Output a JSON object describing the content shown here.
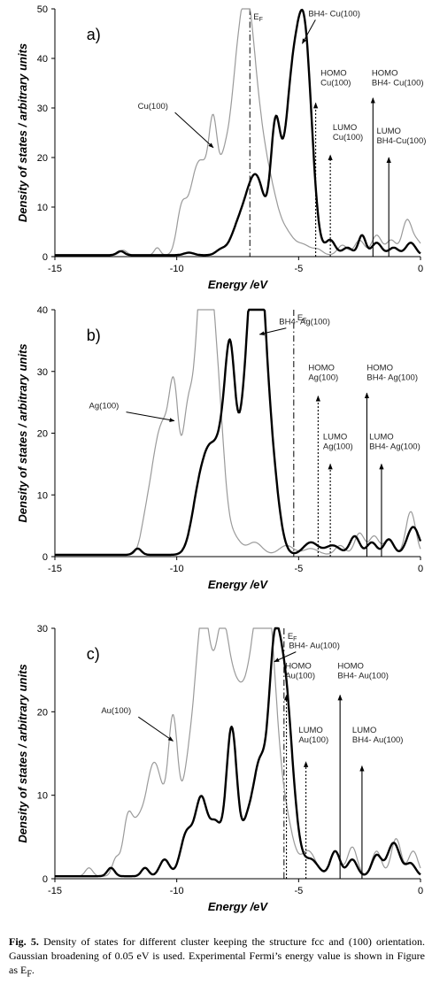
{
  "caption": {
    "label": "Fig. 5.",
    "text": "Density of states for different cluster keeping the structure fcc and (100) orientation. Gaussian broadening of 0.05 eV is used. Experimental Fermi’s energy value is shown in Figure as E",
    "subscript": "F",
    "end": "."
  },
  "chart_data": [
    {
      "type": "line",
      "panel": "a)",
      "xlabel": "Energy  /eV",
      "ylabel": "Density of states / arbitrary units",
      "xlim": [
        -15,
        0
      ],
      "ylim": [
        0,
        50
      ],
      "xticks": [
        -15,
        -10,
        -5,
        0
      ],
      "yticks": [
        0,
        10,
        20,
        30,
        40,
        50
      ],
      "fermi": {
        "label": "EF",
        "x": -7.0
      },
      "series": [
        {
          "name": "Cu(100)",
          "color": "#9a9a9a",
          "width": 1.2,
          "peaks": [
            [
              -12.2,
              1,
              0.15
            ],
            [
              -10.8,
              1.5,
              0.12
            ],
            [
              -9.8,
              9,
              0.2
            ],
            [
              -9.3,
              12,
              0.25
            ],
            [
              -8.9,
              14,
              0.25
            ],
            [
              -8.5,
              22.5,
              0.18
            ],
            [
              -8.1,
              12,
              0.2
            ],
            [
              -7.6,
              28,
              0.3
            ],
            [
              -7.1,
              41,
              0.3
            ],
            [
              -6.6,
              18,
              0.3
            ],
            [
              -6.1,
              10,
              0.3
            ],
            [
              -5.5,
              4,
              0.3
            ],
            [
              -4.8,
              2,
              0.3
            ],
            [
              -4.2,
              1,
              0.2
            ],
            [
              -3.2,
              2,
              0.2
            ],
            [
              -2.5,
              3,
              0.2
            ],
            [
              -1.8,
              4,
              0.2
            ],
            [
              -1.2,
              3,
              0.2
            ],
            [
              -0.55,
              7,
              0.2
            ],
            [
              -0.1,
              2.5,
              0.2
            ]
          ]
        },
        {
          "name": "BH4- Cu(100)",
          "color": "#000000",
          "width": 2.4,
          "peaks": [
            [
              -12.3,
              0.8,
              0.15
            ],
            [
              -9.5,
              0.5,
              0.2
            ],
            [
              -8.2,
              1,
              0.2
            ],
            [
              -7.5,
              5,
              0.3
            ],
            [
              -7.0,
              9,
              0.3
            ],
            [
              -6.6,
              11,
              0.3
            ],
            [
              -5.95,
              24,
              0.2
            ],
            [
              -5.3,
              30,
              0.3
            ],
            [
              -4.75,
              42,
              0.3
            ],
            [
              -3.7,
              3,
              0.2
            ],
            [
              -3.0,
              1.5,
              0.2
            ],
            [
              -2.4,
              4,
              0.15
            ],
            [
              -1.8,
              2.5,
              0.2
            ],
            [
              -1.1,
              1.5,
              0.2
            ],
            [
              -0.4,
              2.5,
              0.2
            ]
          ]
        }
      ],
      "labels": [
        {
          "text": "BH4- Cu(100)",
          "x": -4.6,
          "y": 48.5,
          "arrow_to": [
            -4.85,
            43
          ]
        },
        {
          "text": "Cu(100)",
          "x": -11.6,
          "y": 29.8,
          "arrow_to": [
            -8.5,
            22
          ]
        }
      ],
      "orbitals": [
        {
          "lines": [
            "HOMO",
            "Cu(100)"
          ],
          "x": -4.3,
          "tip": 31,
          "tx": -4.1,
          "ty": 36.5
        },
        {
          "lines": [
            "LUMO",
            "Cu(100)"
          ],
          "x": -3.7,
          "tip": 20.5,
          "tx": -3.6,
          "ty": 25.5
        },
        {
          "lines": [
            "HOMO",
            "BH4- Cu(100)"
          ],
          "x": -1.95,
          "tip": 32,
          "tx": -2.0,
          "ty": 36.5
        },
        {
          "lines": [
            "LUMO",
            "BH4-Cu(100)"
          ],
          "x": -1.3,
          "tip": 20,
          "tx": -1.8,
          "ty": 24.8
        }
      ]
    },
    {
      "type": "line",
      "panel": "b)",
      "xlabel": "Energy  /eV",
      "ylabel": "Density of states / arbitrary units",
      "xlim": [
        -15,
        0
      ],
      "ylim": [
        0,
        40
      ],
      "xticks": [
        -15,
        -10,
        -5,
        0
      ],
      "yticks": [
        0,
        10,
        20,
        30,
        40
      ],
      "fermi": {
        "label": "EF",
        "x": -5.2
      },
      "series": [
        {
          "name": "Ag(100)",
          "color": "#9a9a9a",
          "width": 1.2,
          "peaks": [
            [
              -11.3,
              4,
              0.2
            ],
            [
              -10.9,
              12,
              0.25
            ],
            [
              -10.5,
              16,
              0.25
            ],
            [
              -10.1,
              23,
              0.2
            ],
            [
              -9.6,
              16,
              0.2
            ],
            [
              -9.1,
              28,
              0.3
            ],
            [
              -8.75,
              37,
              0.25
            ],
            [
              -8.3,
              22,
              0.25
            ],
            [
              -7.7,
              3,
              0.3
            ],
            [
              -6.8,
              2,
              0.3
            ],
            [
              -5.5,
              1.5,
              0.3
            ],
            [
              -4.5,
              1,
              0.3
            ],
            [
              -3.3,
              1.5,
              0.2
            ],
            [
              -2.5,
              3.5,
              0.2
            ],
            [
              -1.9,
              3,
              0.2
            ],
            [
              -1.3,
              2.5,
              0.2
            ],
            [
              -0.4,
              7,
              0.2
            ]
          ]
        },
        {
          "name": "BH4- Ag(100)",
          "color": "#000000",
          "width": 2.4,
          "peaks": [
            [
              -11.6,
              1,
              0.15
            ],
            [
              -9.1,
              9,
              0.3
            ],
            [
              -8.6,
              14,
              0.3
            ],
            [
              -8.1,
              14,
              0.25
            ],
            [
              -7.8,
              23,
              0.2
            ],
            [
              -7.35,
              13,
              0.3
            ],
            [
              -6.9,
              25,
              0.3
            ],
            [
              -6.6,
              33,
              0.3
            ],
            [
              -6.1,
              12,
              0.3
            ],
            [
              -4.5,
              2,
              0.3
            ],
            [
              -3.6,
              1.5,
              0.3
            ],
            [
              -2.7,
              3,
              0.2
            ],
            [
              -2.0,
              2,
              0.2
            ],
            [
              -1.3,
              2.5,
              0.2
            ],
            [
              -0.3,
              4.5,
              0.25
            ]
          ]
        }
      ],
      "labels": [
        {
          "text": "BH4- Ag(100)",
          "x": -5.8,
          "y": 37.6,
          "arrow_to": [
            -6.6,
            36
          ]
        },
        {
          "text": "Ag(100)",
          "x": -13.6,
          "y": 24,
          "arrow_to": [
            -10.1,
            22
          ]
        }
      ],
      "orbitals": [
        {
          "lines": [
            "HOMO",
            "Ag(100)"
          ],
          "x": -4.2,
          "tip": 26,
          "tx": -4.6,
          "ty": 30.2
        },
        {
          "lines": [
            "LUMO",
            "Ag(100)"
          ],
          "x": -3.7,
          "tip": 15,
          "tx": -4.0,
          "ty": 19
        },
        {
          "lines": [
            "HOMO",
            "BH4- Ag(100)"
          ],
          "x": -2.2,
          "tip": 26.5,
          "tx": -2.2,
          "ty": 30.2
        },
        {
          "lines": [
            "LUMO",
            "BH4- Ag(100)"
          ],
          "x": -1.6,
          "tip": 15,
          "tx": -2.1,
          "ty": 19
        }
      ]
    },
    {
      "type": "line",
      "panel": "c)",
      "xlabel": "Energy  /eV",
      "ylabel": "Density of states / arbitrary units",
      "xlim": [
        -15,
        0
      ],
      "ylim": [
        0,
        30
      ],
      "xticks": [
        -15,
        -10,
        -5,
        0
      ],
      "yticks": [
        0,
        10,
        20,
        30
      ],
      "fermi": {
        "label": "EF",
        "x": -5.6
      },
      "series": [
        {
          "name": "Au(100)",
          "color": "#9a9a9a",
          "width": 1.2,
          "peaks": [
            [
              -13.6,
              1,
              0.15
            ],
            [
              -12.5,
              2,
              0.15
            ],
            [
              -12.0,
              7,
              0.2
            ],
            [
              -11.6,
              4,
              0.2
            ],
            [
              -11.1,
              9,
              0.3
            ],
            [
              -10.7,
              8,
              0.3
            ],
            [
              -10.15,
              17,
              0.2
            ],
            [
              -9.6,
              9,
              0.25
            ],
            [
              -9.1,
              16,
              0.3
            ],
            [
              -8.8,
              19,
              0.3
            ],
            [
              -8.15,
              26,
              0.3
            ],
            [
              -7.6,
              15,
              0.3
            ],
            [
              -7.0,
              19,
              0.35
            ],
            [
              -6.5,
              22,
              0.3
            ],
            [
              -6.1,
              19,
              0.3
            ],
            [
              -5.5,
              6,
              0.3
            ],
            [
              -4.6,
              3,
              0.3
            ],
            [
              -3.5,
              3,
              0.2
            ],
            [
              -2.8,
              3.5,
              0.2
            ],
            [
              -1.8,
              3,
              0.2
            ],
            [
              -1.0,
              4.5,
              0.2
            ],
            [
              -0.3,
              3,
              0.2
            ]
          ]
        },
        {
          "name": "BH4- Au(100)",
          "color": "#000000",
          "width": 2.4,
          "peaks": [
            [
              -12.7,
              1,
              0.15
            ],
            [
              -11.3,
              1,
              0.15
            ],
            [
              -10.5,
              2,
              0.2
            ],
            [
              -9.6,
              5,
              0.25
            ],
            [
              -9.0,
              9,
              0.25
            ],
            [
              -8.4,
              6,
              0.25
            ],
            [
              -7.75,
              17.5,
              0.22
            ],
            [
              -7.1,
              6,
              0.25
            ],
            [
              -6.6,
              12,
              0.25
            ],
            [
              -6.0,
              25,
              0.25
            ],
            [
              -5.55,
              18,
              0.25
            ],
            [
              -5.2,
              5,
              0.25
            ],
            [
              -4.5,
              2,
              0.3
            ],
            [
              -3.5,
              3,
              0.2
            ],
            [
              -2.8,
              2,
              0.2
            ],
            [
              -1.8,
              2.5,
              0.2
            ],
            [
              -1.1,
              4,
              0.25
            ],
            [
              -0.4,
              1.5,
              0.2
            ]
          ]
        }
      ],
      "labels": [
        {
          "text": "BH4- Au(100)",
          "x": -5.4,
          "y": 27.6,
          "arrow_to": [
            -6.0,
            26
          ]
        },
        {
          "text": "Au(100)",
          "x": -13.1,
          "y": 19.8,
          "arrow_to": [
            -10.15,
            16.5
          ]
        }
      ],
      "orbitals": [
        {
          "lines": [
            "HOMO",
            "Au(100)"
          ],
          "x": -5.5,
          "tip": 22,
          "tx": -5.55,
          "ty": 25.2
        },
        {
          "lines": [
            "LUMO",
            "Au(100)"
          ],
          "x": -4.7,
          "tip": 14,
          "tx": -5.0,
          "ty": 17.5
        },
        {
          "lines": [
            "HOMO",
            "BH4- Au(100)"
          ],
          "x": -3.3,
          "tip": 22,
          "tx": -3.4,
          "ty": 25.2
        },
        {
          "lines": [
            "LUMO",
            "BH4- Au(100)"
          ],
          "x": -2.4,
          "tip": 13.5,
          "tx": -2.8,
          "ty": 17.5
        }
      ]
    }
  ]
}
